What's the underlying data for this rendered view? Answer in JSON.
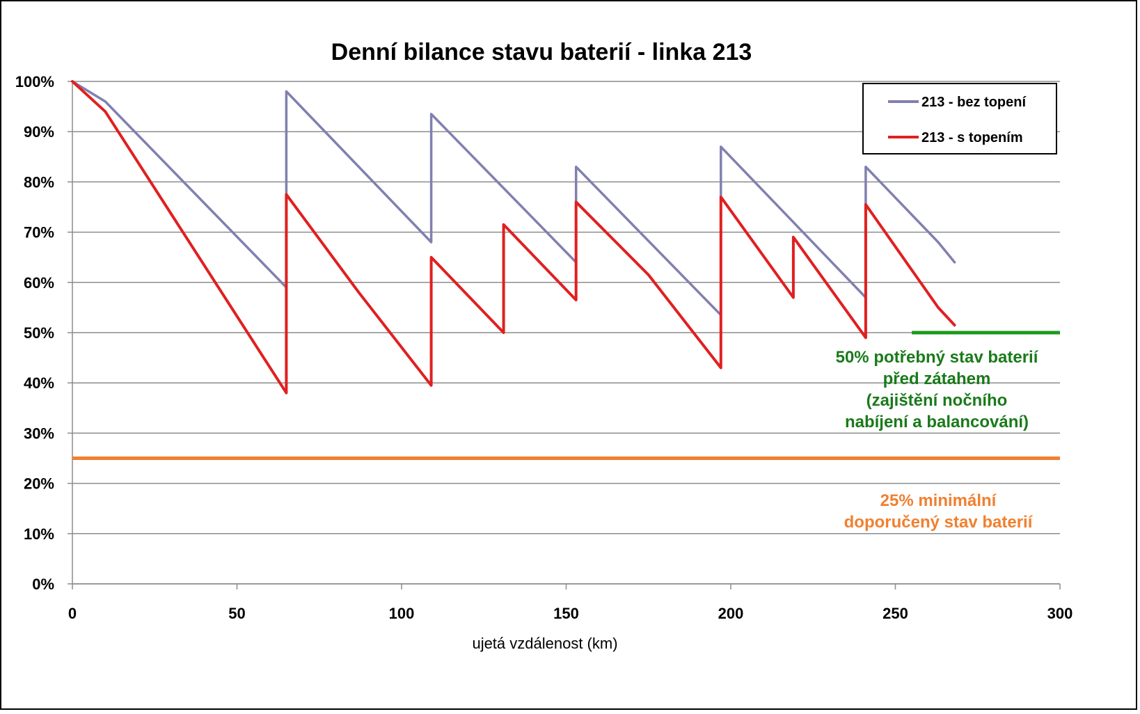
{
  "chart_data": {
    "type": "line",
    "title": "Denní bilance stavu baterií - linka 213",
    "xlabel": "ujetá vzdálenost (km)",
    "ylabel": "",
    "xlim": [
      0,
      300
    ],
    "ylim": [
      0,
      100
    ],
    "x_ticks": [
      "0",
      "50",
      "100",
      "150",
      "200",
      "250",
      "300"
    ],
    "y_ticks": [
      "0%",
      "10%",
      "20%",
      "30%",
      "40%",
      "50%",
      "60%",
      "70%",
      "80%",
      "90%",
      "100%"
    ],
    "grid": "horizontal",
    "legend_position": "top-right",
    "series": [
      {
        "name": "213 - bez topení",
        "color": "#8080b0",
        "points": [
          [
            0,
            100
          ],
          [
            10,
            96
          ],
          [
            65,
            59
          ],
          [
            65,
            98
          ],
          [
            109,
            68
          ],
          [
            109,
            93.5
          ],
          [
            153,
            64
          ],
          [
            153,
            83
          ],
          [
            197,
            53.5
          ],
          [
            197,
            87
          ],
          [
            241,
            57
          ],
          [
            241,
            83
          ],
          [
            263,
            68
          ],
          [
            268,
            64
          ]
        ]
      },
      {
        "name": "213 - s topením",
        "color": "#e02020",
        "points": [
          [
            0,
            100
          ],
          [
            10,
            94
          ],
          [
            65,
            38
          ],
          [
            65,
            77.5
          ],
          [
            87,
            58
          ],
          [
            109,
            39.5
          ],
          [
            109,
            65
          ],
          [
            131,
            50
          ],
          [
            131,
            71.5
          ],
          [
            153,
            56.5
          ],
          [
            153,
            76
          ],
          [
            175,
            61.5
          ],
          [
            197,
            43
          ],
          [
            197,
            77
          ],
          [
            219,
            57
          ],
          [
            219,
            69
          ],
          [
            241,
            49
          ],
          [
            241,
            75.5
          ],
          [
            263,
            55
          ],
          [
            268,
            51.5
          ]
        ]
      }
    ],
    "reference_lines": [
      {
        "value": 50,
        "x_from": 255,
        "x_to": 300,
        "color": "#1a9a1a"
      },
      {
        "value": 25,
        "x_from": 0,
        "x_to": 300,
        "color": "#f08030"
      }
    ],
    "annotations": {
      "green": [
        "50% potřebný stav baterií",
        "před zátahem",
        "(zajištění nočního",
        "nabíjení a balancování)"
      ],
      "orange": [
        "25% minimální",
        "doporučený stav baterií"
      ]
    }
  }
}
